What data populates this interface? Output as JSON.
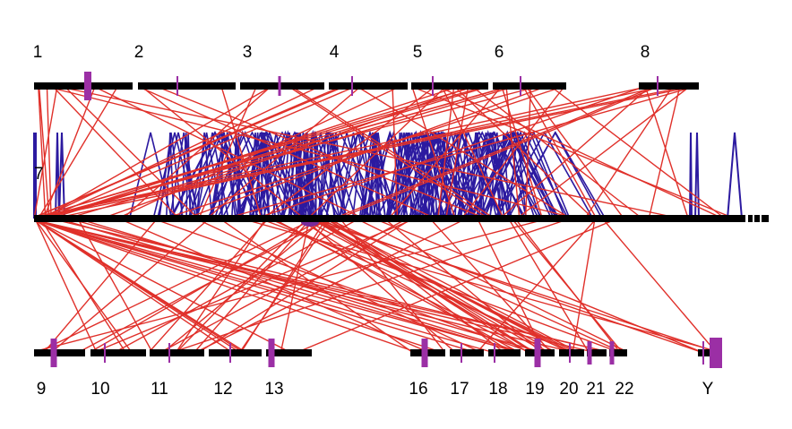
{
  "top_chromosomes": [
    "1",
    "2",
    "3",
    "4",
    "5",
    "6",
    "8"
  ],
  "middle_chromosome": "7",
  "bottom_chromosomes": [
    "9",
    "10",
    "11",
    "12",
    "13",
    "16",
    "17",
    "18",
    "19",
    "20",
    "21",
    "22",
    "Y"
  ]
}
